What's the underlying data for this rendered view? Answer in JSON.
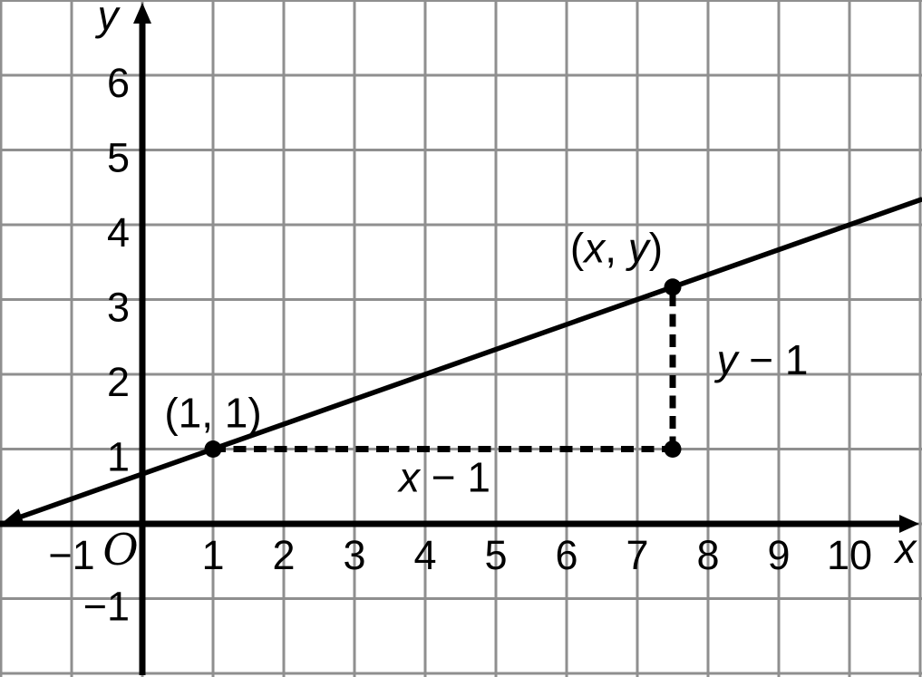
{
  "chart_data": {
    "type": "line",
    "title": "",
    "xlabel": "x",
    "ylabel": "y",
    "origin_label": "O",
    "xlim": [
      -2,
      11
    ],
    "ylim": [
      -2,
      7
    ],
    "x_ticks": [
      -1,
      1,
      2,
      3,
      4,
      5,
      6,
      7,
      8,
      9,
      10
    ],
    "y_ticks": [
      -1,
      1,
      2,
      3,
      4,
      5,
      6
    ],
    "grid": true,
    "legend": false,
    "colors": {
      "background": "#ffffff",
      "grid": "#8f8f8f",
      "axis": "#000000",
      "line": "#000000",
      "point": "#000000"
    },
    "line": {
      "through": [
        1,
        1
      ],
      "slope": 0.33333,
      "x_span": [
        -2,
        11.03
      ],
      "arrow_at_start": true
    },
    "points": [
      {
        "x": 1,
        "y": 1,
        "label": "(1, 1)",
        "label_offset": [
          0,
          -24
        ]
      },
      {
        "x": 7.5,
        "y": 3.1667,
        "label": "(x, y)",
        "label_offset": [
          -62,
          -27
        ]
      },
      {
        "x": 7.5,
        "y": 1,
        "label": "",
        "label_offset": [
          0,
          0
        ]
      }
    ],
    "dashed_segments": [
      {
        "from": [
          1,
          1
        ],
        "to": [
          7.5,
          1
        ],
        "label": "x − 1",
        "label_offset": [
          2,
          47
        ]
      },
      {
        "from": [
          7.5,
          1
        ],
        "to": [
          7.5,
          3.1667
        ],
        "label": "y − 1",
        "label_offset": [
          99,
          7
        ]
      }
    ]
  }
}
